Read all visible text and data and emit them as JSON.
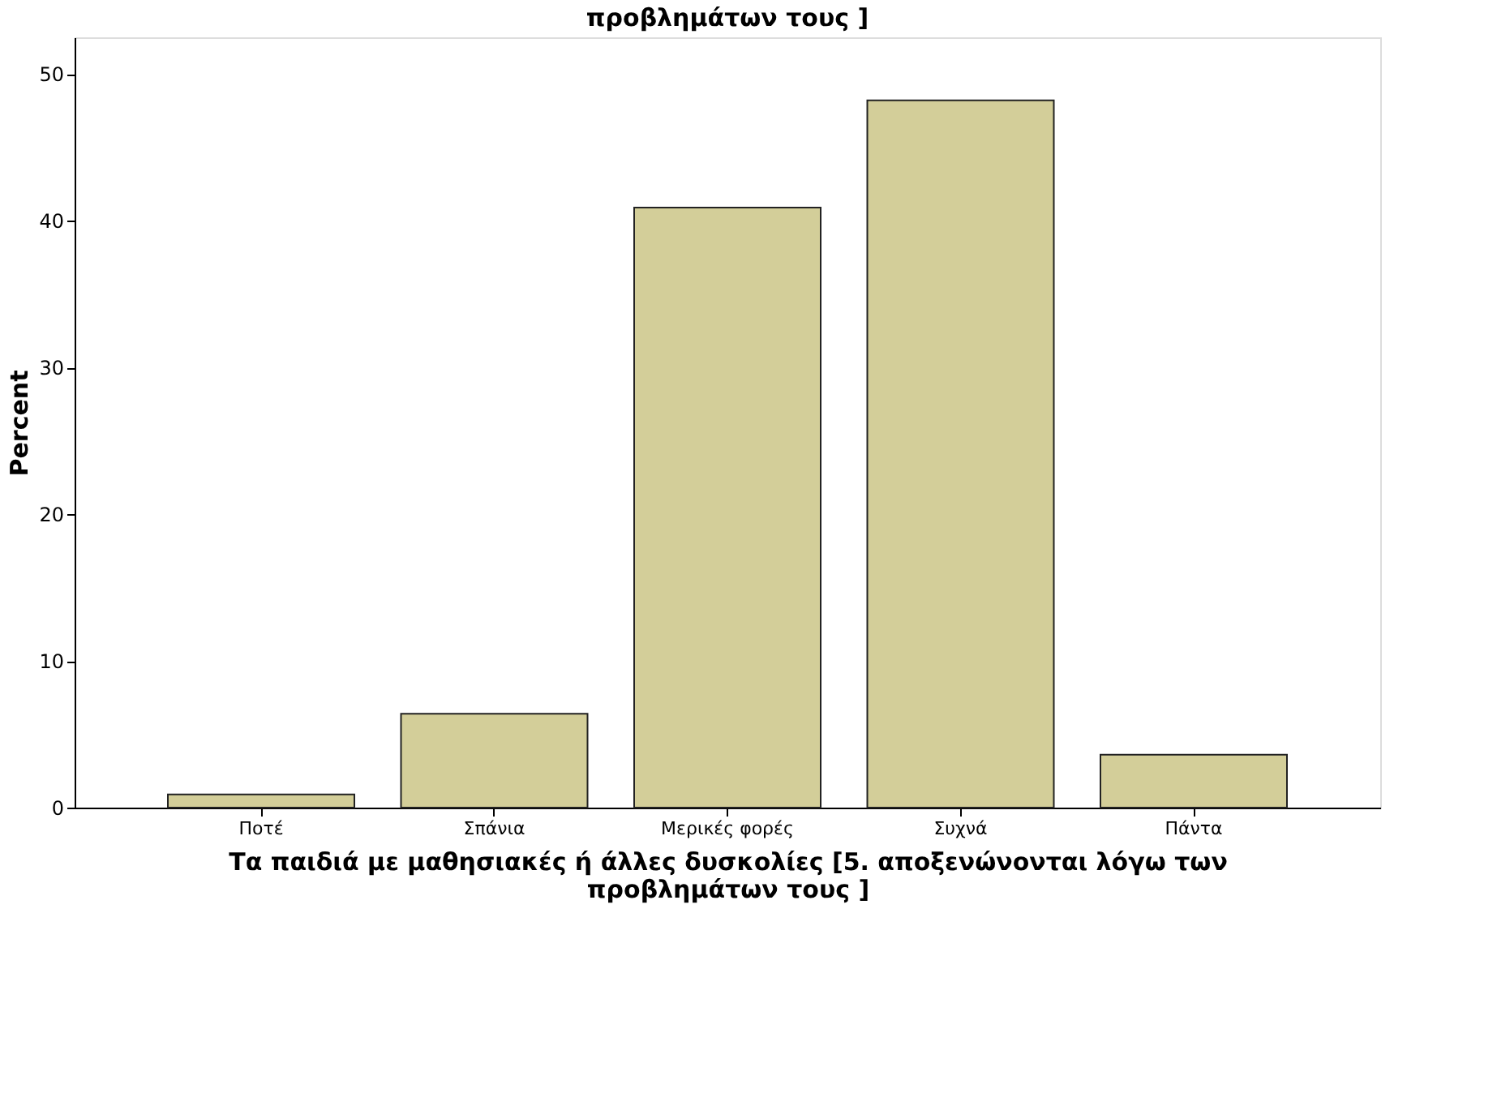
{
  "chart_data": {
    "type": "bar",
    "title": "προβλημάτων τους ]",
    "xlabel": "Τα παιδιά με μαθησιακές ή άλλες δυσκολίες  [5. αποξενώνονται λόγω των\nπροβλημάτων τους ]",
    "ylabel": "Percent",
    "categories": [
      "Ποτέ",
      "Σπάνια",
      "Μερικές φορές",
      "Συχνά",
      "Πάντα"
    ],
    "values": [
      0.9,
      6.4,
      40.9,
      48.2,
      3.6
    ],
    "color": "#d3ce99",
    "ylim": [
      0,
      52.5
    ],
    "yticks": [
      0,
      10,
      20,
      30,
      40,
      50
    ],
    "grid": false
  }
}
